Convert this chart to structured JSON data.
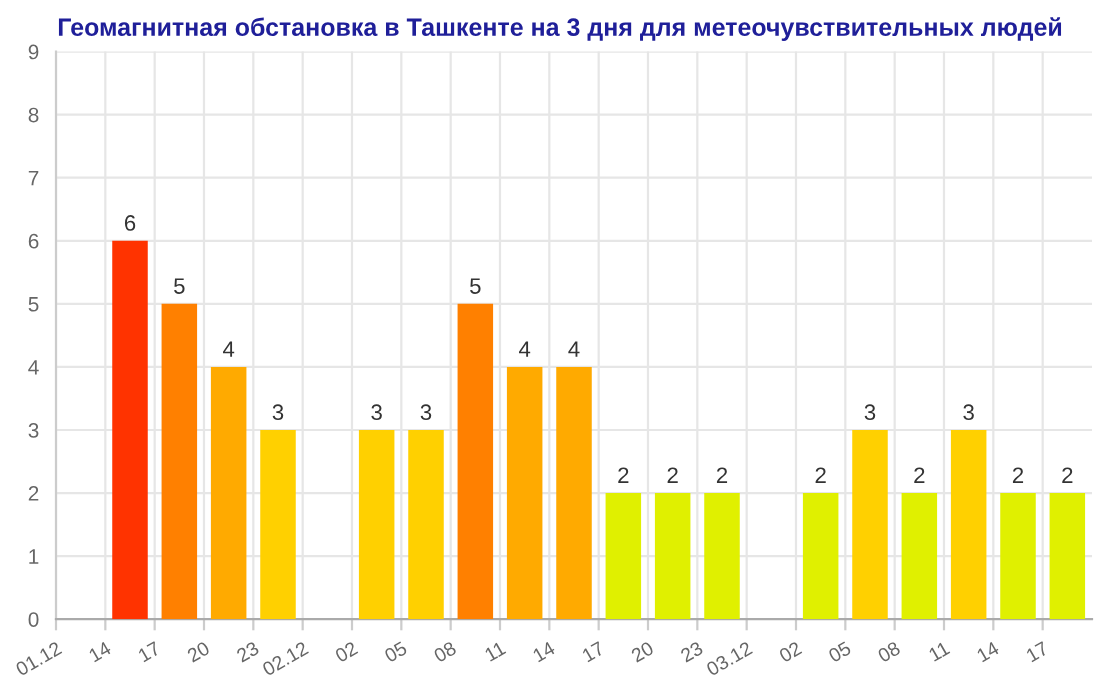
{
  "chart_data": {
    "type": "bar",
    "title": "Геомагнитная обстановка в Ташкенте на 3 дня для метеочувствительных людей",
    "categories": [
      "01.12",
      "14",
      "17",
      "20",
      "23",
      "02.12",
      "02",
      "05",
      "08",
      "11",
      "14",
      "17",
      "20",
      "23",
      "03.12",
      "02",
      "05",
      "08",
      "11",
      "14",
      "17"
    ],
    "values": [
      null,
      6,
      5,
      4,
      3,
      null,
      3,
      3,
      5,
      4,
      4,
      2,
      2,
      2,
      null,
      2,
      3,
      2,
      3,
      2,
      2
    ],
    "colors": [
      "#008000",
      "#ff3300",
      "#ff8000",
      "#ffaa00",
      "#ffd000",
      "#008000",
      "#ffd000",
      "#ffd000",
      "#ff8000",
      "#ffaa00",
      "#ffaa00",
      "#e0f000",
      "#e0f000",
      "#e0f000",
      "#008000",
      "#e0f000",
      "#ffd000",
      "#e0f000",
      "#ffd000",
      "#e0f000",
      "#e0f000"
    ],
    "ylim": [
      0,
      9
    ],
    "yticks": [
      0,
      1,
      2,
      3,
      4,
      5,
      6,
      7,
      8,
      9
    ],
    "grid": true,
    "data_labels": true
  }
}
